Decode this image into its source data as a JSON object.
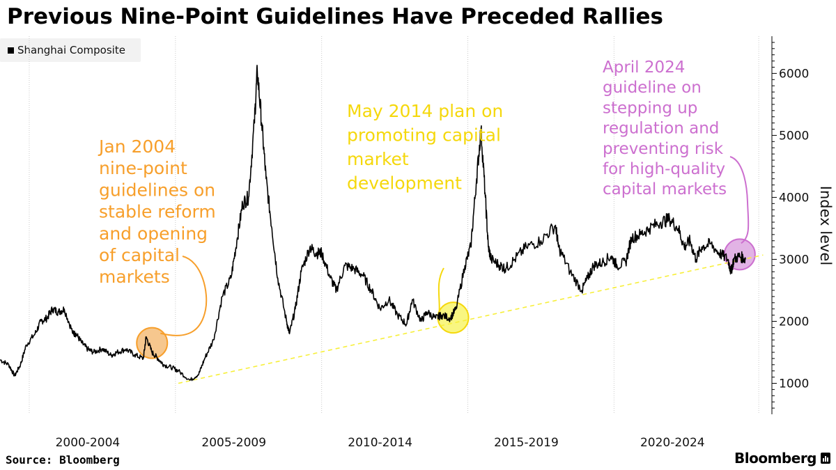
{
  "chart_data": {
    "type": "line",
    "title": "Previous Nine-Point Guidelines Have Preceded Rallies",
    "legend": [
      "Shanghai Composite"
    ],
    "ylabel": "Index level",
    "xlabel": "",
    "ylim": [
      500,
      6600
    ],
    "xlim": [
      1999.0,
      2025.4
    ],
    "yticks": [
      1000,
      2000,
      3000,
      4000,
      5000,
      6000
    ],
    "x_tick_labels": [
      "2000-2004",
      "2005-2009",
      "2010-2014",
      "2015-2019",
      "2020-2024"
    ],
    "series": [
      {
        "name": "Shanghai Composite",
        "x": [
          1999.0,
          1999.3,
          1999.5,
          1999.7,
          1999.9,
          2000.2,
          2000.4,
          2000.6,
          2000.8,
          2001.0,
          2001.2,
          2001.5,
          2001.6,
          2001.8,
          2002.0,
          2002.2,
          2002.5,
          2002.8,
          2003.0,
          2003.3,
          2003.6,
          2003.9,
          2004.0,
          2004.2,
          2004.4,
          2004.6,
          2004.9,
          2005.1,
          2005.5,
          2005.8,
          2006.0,
          2006.3,
          2006.6,
          2006.9,
          2007.1,
          2007.3,
          2007.5,
          2007.7,
          2007.8,
          2007.95,
          2008.1,
          2008.3,
          2008.5,
          2008.8,
          2008.9,
          2009.1,
          2009.3,
          2009.6,
          2009.8,
          2010.0,
          2010.3,
          2010.5,
          2010.8,
          2011.1,
          2011.4,
          2011.7,
          2012.0,
          2012.3,
          2012.6,
          2012.9,
          2013.1,
          2013.4,
          2013.6,
          2013.9,
          2014.1,
          2014.4,
          2014.6,
          2014.9,
          2015.1,
          2015.3,
          2015.45,
          2015.6,
          2015.7,
          2015.8,
          2016.1,
          2016.3,
          2016.6,
          2017.0,
          2017.5,
          2018.0,
          2018.1,
          2018.5,
          2018.9,
          2019.1,
          2019.3,
          2019.6,
          2019.9,
          2020.1,
          2020.4,
          2020.6,
          2020.9,
          2021.2,
          2021.6,
          2021.9,
          2022.2,
          2022.4,
          2022.6,
          2022.8,
          2023.0,
          2023.3,
          2023.6,
          2023.9,
          2024.0,
          2024.1,
          2024.3,
          2024.5
        ],
        "values": [
          1380,
          1300,
          1120,
          1300,
          1620,
          1800,
          2000,
          2050,
          2200,
          2150,
          2200,
          1800,
          1800,
          1650,
          1550,
          1500,
          1560,
          1450,
          1500,
          1550,
          1460,
          1400,
          1750,
          1500,
          1400,
          1300,
          1250,
          1200,
          1050,
          1150,
          1400,
          1700,
          2400,
          2700,
          3300,
          3900,
          4000,
          5200,
          6050,
          5200,
          4300,
          3500,
          2700,
          2000,
          1800,
          2200,
          2800,
          3200,
          3100,
          3100,
          2700,
          2500,
          2900,
          2850,
          2750,
          2500,
          2200,
          2350,
          2100,
          1950,
          2350,
          2000,
          2150,
          2050,
          2100,
          2050,
          2200,
          2900,
          3200,
          4300,
          5100,
          4000,
          3200,
          3000,
          2900,
          2850,
          3000,
          3200,
          3300,
          3550,
          3200,
          2800,
          2500,
          2700,
          2900,
          2950,
          3050,
          2900,
          2950,
          3350,
          3400,
          3500,
          3600,
          3650,
          3500,
          3200,
          3300,
          3000,
          3200,
          3250,
          3100,
          3000,
          2800,
          3000,
          3050,
          3000
        ],
        "color": "#000000"
      },
      {
        "name": "Trend line",
        "x": [
          2005.1,
          2025.1
        ],
        "values": [
          1000,
          3070
        ],
        "style": "dashed",
        "color": "#f7ef3a"
      }
    ],
    "annotations": [
      {
        "text_lines": [
          "Jan 2004",
          "nine-point",
          "guidelines on",
          "stable reform",
          "and opening",
          "of capital",
          "markets"
        ],
        "color": "#f79f2b",
        "fill": "#f5bd7a",
        "marker_x": 2004.2,
        "marker_y": 1650
      },
      {
        "text_lines": [
          "May 2014 plan on",
          "promoting capital",
          "market",
          "development"
        ],
        "color": "#f5d80c",
        "fill": "#f8f56b",
        "marker_x": 2014.5,
        "marker_y": 2060
      },
      {
        "text_lines": [
          "April 2024",
          "guideline on",
          "stepping up",
          "regulation and",
          "preventing risk",
          "for high-quality",
          "capital markets"
        ],
        "color": "#cc6fcf",
        "fill": "#dda6e0",
        "marker_x": 2024.3,
        "marker_y": 3080
      }
    ]
  },
  "footer": {
    "source": "Source: Bloomberg",
    "brand": "Bloomberg"
  }
}
